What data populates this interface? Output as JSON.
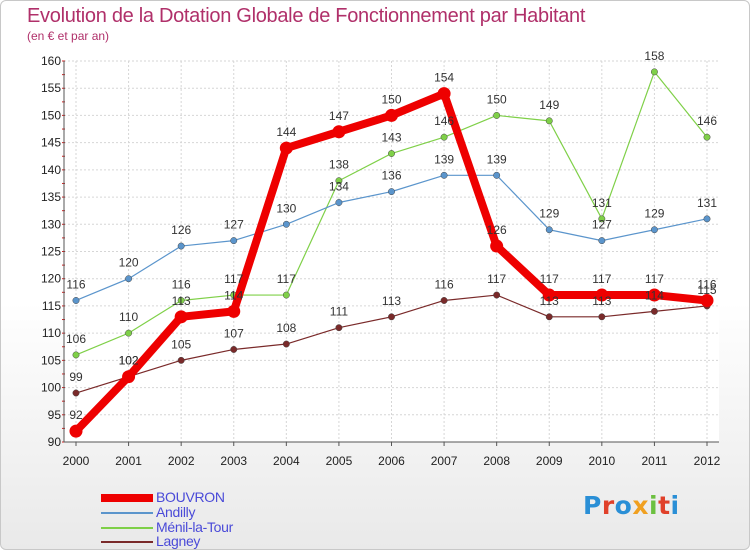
{
  "header": {
    "title": "Evolution de la Dotation Globale de Fonctionnement par Habitant",
    "subtitle": "(en € et par an)"
  },
  "logo": {
    "text": "Proxiti",
    "letters": [
      "P",
      "r",
      "o",
      "x",
      "i",
      "t",
      "i"
    ],
    "colors": [
      "#2a8fd6",
      "#e0402a",
      "#2a8fd6",
      "#f0a020",
      "#6cc040",
      "#e0402a",
      "#2a8fd6"
    ]
  },
  "chart_data": {
    "type": "line",
    "title": "Evolution de la Dotation Globale de Fonctionnement par Habitant",
    "subtitle": "(en € et par an)",
    "xlabel": "",
    "ylabel": "",
    "x": [
      "2000",
      "2001",
      "2002",
      "2003",
      "2004",
      "2005",
      "2006",
      "2007",
      "2008",
      "2009",
      "2010",
      "2011",
      "2012"
    ],
    "ylim": [
      90,
      160
    ],
    "yticks": [
      90,
      95,
      100,
      105,
      110,
      115,
      120,
      125,
      130,
      135,
      140,
      145,
      150,
      155,
      160
    ],
    "grid": true,
    "legend_position": "bottom-left",
    "series": [
      {
        "name": "BOUVRON",
        "color": "#ee0000",
        "values": [
          92,
          102,
          113,
          114,
          144,
          147,
          150,
          154,
          126,
          117,
          117,
          117,
          116
        ],
        "labels": [
          "92",
          "102",
          "113",
          "114",
          "144",
          "147",
          "150",
          "154",
          "126",
          "117",
          "117",
          "117",
          "116"
        ]
      },
      {
        "name": "Andilly",
        "color": "#5b95cc",
        "values": [
          116,
          120,
          126,
          127,
          130,
          134,
          136,
          139,
          139,
          129,
          127,
          129,
          131
        ],
        "labels": [
          "116",
          "120",
          "126",
          "127",
          "130",
          "134",
          "136",
          "139",
          "139",
          "129",
          "127",
          "129",
          "131"
        ]
      },
      {
        "name": "Ménil-la-Tour",
        "color": "#7fd048",
        "values": [
          106,
          110,
          116,
          117,
          117,
          138,
          143,
          146,
          150,
          149,
          131,
          158,
          146
        ],
        "labels": [
          "106",
          "110",
          "116",
          "117",
          "117",
          "138",
          "143",
          "146",
          "150",
          "149",
          "131",
          "158",
          "146"
        ]
      },
      {
        "name": "Lagney",
        "color": "#7a2a2a",
        "values": [
          99,
          102,
          105,
          107,
          108,
          111,
          113,
          116,
          117,
          113,
          113,
          114,
          115
        ],
        "labels": [
          "99",
          "102",
          "105",
          "107",
          "108",
          "111",
          "113",
          "116",
          "117",
          "113",
          "113",
          "114",
          "115"
        ]
      }
    ]
  }
}
